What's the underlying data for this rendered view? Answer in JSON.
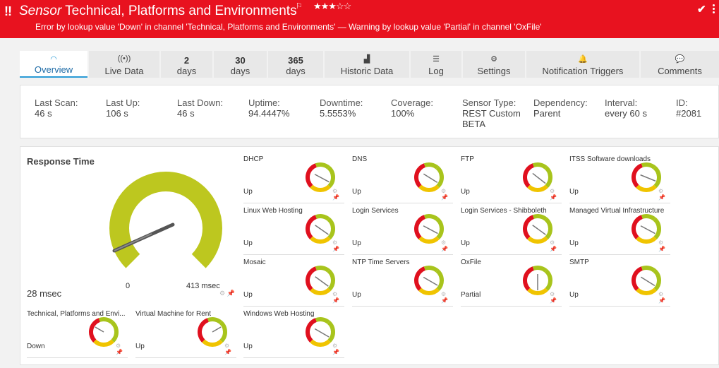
{
  "header": {
    "alert_icon": "!!",
    "kind": "Sensor",
    "title": "Technical, Platforms and Environments",
    "flag_icon": "flag-icon",
    "stars": "★★★☆☆",
    "message": "Error by lookup value 'Down' in channel 'Technical, Platforms and Environments' — Warning by lookup value 'Partial' in channel 'OxFile'",
    "check_icon": "✔",
    "colors": {
      "background": "#e8121f",
      "text": "#ffffff"
    }
  },
  "tabs": [
    {
      "label": "Overview",
      "icon": "◠",
      "active": true
    },
    {
      "label": "Live Data",
      "icon": "((•))"
    },
    {
      "number": "2",
      "label": "days"
    },
    {
      "number": "30",
      "label": "days"
    },
    {
      "number": "365",
      "label": "days"
    },
    {
      "label": "Historic Data",
      "icon": "▟"
    },
    {
      "label": "Log",
      "icon": "☰"
    },
    {
      "label": "Settings",
      "icon": "⚙"
    },
    {
      "label": "Notification Triggers",
      "icon": "🔔"
    },
    {
      "label": "Comments",
      "icon": "💬"
    }
  ],
  "info": [
    {
      "key": "Last Scan:",
      "value": "46 s"
    },
    {
      "key": "Last Up:",
      "value": "106 s"
    },
    {
      "key": "Last Down:",
      "value": "46 s"
    },
    {
      "key": "Uptime:",
      "value": "94.4447%"
    },
    {
      "key": "Downtime:",
      "value": "5.5553%"
    },
    {
      "key": "Coverage:",
      "value": "100%"
    },
    {
      "key": "Sensor Type:",
      "value": "REST Custom",
      "value2": "BETA"
    },
    {
      "key": "Dependency:",
      "value": "Parent"
    },
    {
      "key": "Interval:",
      "value": "every 60 s"
    },
    {
      "key": "ID:",
      "value": "#2081"
    }
  ],
  "big_gauge": {
    "title": "Response Time",
    "value": "28 msec",
    "min_label": "0",
    "max_label": "413 msec",
    "needle_fraction": 0.06,
    "color": "#bdc71f"
  },
  "gauges": [
    {
      "name": "DHCP",
      "status": "Up"
    },
    {
      "name": "DNS",
      "status": "Up"
    },
    {
      "name": "FTP",
      "status": "Up"
    },
    {
      "name": "ITSS Software downloads",
      "status": "Up"
    },
    {
      "name": "Linux Web Hosting",
      "status": "Up"
    },
    {
      "name": "Login Services",
      "status": "Up"
    },
    {
      "name": "Login Services - Shibboleth",
      "status": "Up"
    },
    {
      "name": "Managed Virtual Infrastructure",
      "status": "Up"
    },
    {
      "name": "Mosaic",
      "status": "Up"
    },
    {
      "name": "NTP Time Servers",
      "status": "Up"
    },
    {
      "name": "OxFile",
      "status": "Partial"
    },
    {
      "name": "SMTP",
      "status": "Up"
    },
    {
      "name": "Technical, Platforms and Envi...",
      "status": "Down"
    },
    {
      "name": "Virtual Machine for Rent",
      "status": "Up"
    },
    {
      "name": "Windows Web Hosting",
      "status": "Up"
    }
  ],
  "gauge_colors": {
    "red": "#e0101e",
    "yellow": "#f0c400",
    "green": "#a8c41c",
    "needle": "#777777"
  }
}
